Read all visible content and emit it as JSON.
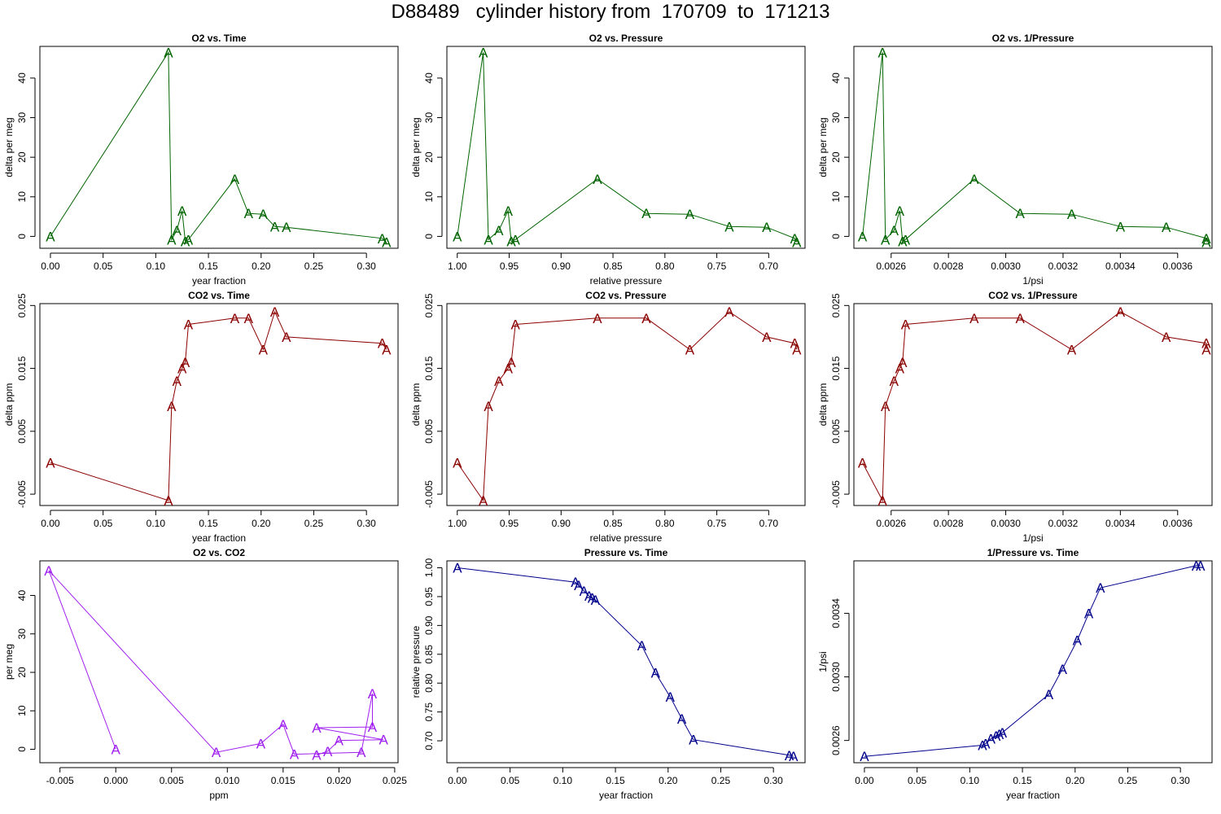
{
  "page": {
    "title": "D88489   cylinder history from  170709  to  171213"
  },
  "colors": {
    "o2": "#006400",
    "co2": "#8b0000",
    "o2co2": "#a020f0",
    "pressure": "#00008b"
  },
  "marker_glyph": "A",
  "chart_data": [
    {
      "type": "line",
      "title": "O2 vs. Time",
      "xlabel": "year fraction",
      "ylabel": "delta per meg",
      "xlim": [
        -0.01,
        0.33
      ],
      "ylim": [
        -3,
        48
      ],
      "xticks": [
        0,
        0.05,
        0.1,
        0.15,
        0.2,
        0.25,
        0.3
      ],
      "xtick_labels": [
        "0.00",
        "0.05",
        "0.10",
        "0.15",
        "0.20",
        "0.25",
        "0.30"
      ],
      "yticks": [
        0,
        10,
        20,
        30,
        40
      ],
      "ytick_labels": [
        "0",
        "10",
        "20",
        "30",
        "40"
      ],
      "color_key": "o2",
      "x": [
        0.0,
        0.112,
        0.115,
        0.12,
        0.125,
        0.128,
        0.131,
        0.175,
        0.188,
        0.202,
        0.213,
        0.224,
        0.315,
        0.319
      ],
      "y": [
        0.0,
        46.5,
        -0.8,
        1.5,
        6.5,
        -1.3,
        -0.8,
        14.5,
        5.8,
        5.6,
        2.5,
        2.3,
        -0.5,
        -1.5
      ]
    },
    {
      "type": "line",
      "title": "O2 vs. Pressure",
      "xlabel": "relative pressure",
      "ylabel": "delta per meg",
      "xlim": [
        1.01,
        0.665
      ],
      "ylim": [
        -3,
        48
      ],
      "xticks": [
        1.0,
        0.95,
        0.9,
        0.85,
        0.8,
        0.75,
        0.7
      ],
      "xtick_labels": [
        "1.00",
        "0.95",
        "0.90",
        "0.85",
        "0.80",
        "0.75",
        "0.70"
      ],
      "yticks": [
        0,
        10,
        20,
        30,
        40
      ],
      "ytick_labels": [
        "0",
        "10",
        "20",
        "30",
        "40"
      ],
      "color_key": "o2",
      "x": [
        1.0,
        0.975,
        0.97,
        0.96,
        0.951,
        0.948,
        0.944,
        0.865,
        0.818,
        0.776,
        0.738,
        0.702,
        0.675,
        0.673
      ],
      "y": [
        0.0,
        46.5,
        -0.8,
        1.5,
        6.5,
        -1.3,
        -0.8,
        14.5,
        5.8,
        5.6,
        2.5,
        2.3,
        -0.5,
        -1.5
      ]
    },
    {
      "type": "line",
      "title": "O2 vs. 1/Pressure",
      "xlabel": "1/psi",
      "ylabel": "delta per meg",
      "xlim": [
        0.00247,
        0.00372
      ],
      "ylim": [
        -3,
        48
      ],
      "xticks": [
        0.0026,
        0.0028,
        0.003,
        0.0032,
        0.0034,
        0.0036
      ],
      "xtick_labels": [
        "0.0026",
        "0.0028",
        "0.0030",
        "0.0032",
        "0.0034",
        "0.0036"
      ],
      "yticks": [
        0,
        10,
        20,
        30,
        40
      ],
      "ytick_labels": [
        "0",
        "10",
        "20",
        "30",
        "40"
      ],
      "color_key": "o2",
      "x": [
        0.0025,
        0.00257,
        0.00258,
        0.00261,
        0.00263,
        0.00264,
        0.00265,
        0.00289,
        0.00305,
        0.00323,
        0.0034,
        0.00356,
        0.0037,
        0.0037
      ],
      "y": [
        0.0,
        46.5,
        -0.8,
        1.5,
        6.5,
        -1.3,
        -0.8,
        14.5,
        5.8,
        5.6,
        2.5,
        2.3,
        -0.5,
        -1.5
      ]
    },
    {
      "type": "line",
      "title": "CO2 vs. Time",
      "xlabel": "year fraction",
      "ylabel": "delta ppm",
      "xlim": [
        -0.01,
        0.33
      ],
      "ylim": [
        -0.0068,
        0.0253
      ],
      "xticks": [
        0,
        0.05,
        0.1,
        0.15,
        0.2,
        0.25,
        0.3
      ],
      "xtick_labels": [
        "0.00",
        "0.05",
        "0.10",
        "0.15",
        "0.20",
        "0.25",
        "0.30"
      ],
      "yticks": [
        -0.005,
        0.005,
        0.015,
        0.025
      ],
      "ytick_labels": [
        "-0.005",
        "0.005",
        "0.015",
        "0.025"
      ],
      "color_key": "co2",
      "x": [
        0.0,
        0.112,
        0.115,
        0.12,
        0.125,
        0.128,
        0.131,
        0.175,
        0.188,
        0.202,
        0.213,
        0.224,
        0.315,
        0.319
      ],
      "y": [
        0.0,
        -0.006,
        0.009,
        0.013,
        0.015,
        0.016,
        0.022,
        0.023,
        0.023,
        0.018,
        0.024,
        0.02,
        0.019,
        0.018
      ]
    },
    {
      "type": "line",
      "title": "CO2 vs. Pressure",
      "xlabel": "relative pressure",
      "ylabel": "delta ppm",
      "xlim": [
        1.01,
        0.665
      ],
      "ylim": [
        -0.0068,
        0.0253
      ],
      "xticks": [
        1.0,
        0.95,
        0.9,
        0.85,
        0.8,
        0.75,
        0.7
      ],
      "xtick_labels": [
        "1.00",
        "0.95",
        "0.90",
        "0.85",
        "0.80",
        "0.75",
        "0.70"
      ],
      "yticks": [
        -0.005,
        0.005,
        0.015,
        0.025
      ],
      "ytick_labels": [
        "-0.005",
        "0.005",
        "0.015",
        "0.025"
      ],
      "color_key": "co2",
      "x": [
        1.0,
        0.975,
        0.97,
        0.96,
        0.951,
        0.948,
        0.944,
        0.865,
        0.818,
        0.776,
        0.738,
        0.702,
        0.675,
        0.673
      ],
      "y": [
        0.0,
        -0.006,
        0.009,
        0.013,
        0.015,
        0.016,
        0.022,
        0.023,
        0.023,
        0.018,
        0.024,
        0.02,
        0.019,
        0.018
      ]
    },
    {
      "type": "line",
      "title": "CO2 vs. 1/Pressure",
      "xlabel": "1/psi",
      "ylabel": "delta ppm",
      "xlim": [
        0.00247,
        0.00372
      ],
      "ylim": [
        -0.0068,
        0.0253
      ],
      "xticks": [
        0.0026,
        0.0028,
        0.003,
        0.0032,
        0.0034,
        0.0036
      ],
      "xtick_labels": [
        "0.0026",
        "0.0028",
        "0.0030",
        "0.0032",
        "0.0034",
        "0.0036"
      ],
      "yticks": [
        -0.005,
        0.005,
        0.015,
        0.025
      ],
      "ytick_labels": [
        "-0.005",
        "0.005",
        "0.015",
        "0.025"
      ],
      "color_key": "co2",
      "x": [
        0.0025,
        0.00257,
        0.00258,
        0.00261,
        0.00263,
        0.00264,
        0.00265,
        0.00289,
        0.00305,
        0.00323,
        0.0034,
        0.00356,
        0.0037,
        0.0037
      ],
      "y": [
        0.0,
        -0.006,
        0.009,
        0.013,
        0.015,
        0.016,
        0.022,
        0.023,
        0.023,
        0.018,
        0.024,
        0.02,
        0.019,
        0.018
      ]
    },
    {
      "type": "line",
      "title": "O2 vs. CO2",
      "xlabel": "ppm",
      "ylabel": "per meg",
      "xlim": [
        -0.0068,
        0.0253
      ],
      "ylim": [
        -3.5,
        49
      ],
      "xticks": [
        -0.005,
        0.0,
        0.005,
        0.01,
        0.015,
        0.02,
        0.025
      ],
      "xtick_labels": [
        "-0.005",
        "0.000",
        "0.005",
        "0.010",
        "0.015",
        "0.020",
        "0.025"
      ],
      "yticks": [
        0,
        10,
        20,
        30,
        40
      ],
      "ytick_labels": [
        "0",
        "10",
        "20",
        "30",
        "40"
      ],
      "color_key": "o2co2",
      "x": [
        0.0,
        -0.006,
        0.009,
        0.013,
        0.015,
        0.016,
        0.022,
        0.023,
        0.023,
        0.018,
        0.024,
        0.02,
        0.019,
        0.018
      ],
      "y": [
        0.0,
        46.5,
        -0.8,
        1.5,
        6.5,
        -1.3,
        -0.8,
        14.5,
        5.8,
        5.6,
        2.5,
        2.3,
        -0.5,
        -1.5
      ]
    },
    {
      "type": "line",
      "title": "Pressure vs. Time",
      "xlabel": "year fraction",
      "ylabel": "relative pressure",
      "xlim": [
        -0.01,
        0.33
      ],
      "ylim": [
        0.662,
        1.012
      ],
      "xticks": [
        0,
        0.05,
        0.1,
        0.15,
        0.2,
        0.25,
        0.3
      ],
      "xtick_labels": [
        "0.00",
        "0.05",
        "0.10",
        "0.15",
        "0.20",
        "0.25",
        "0.30"
      ],
      "yticks": [
        0.7,
        0.75,
        0.8,
        0.85,
        0.9,
        0.95,
        1.0
      ],
      "ytick_labels": [
        "0.70",
        "0.75",
        "0.80",
        "0.85",
        "0.90",
        "0.95",
        "1.00"
      ],
      "color_key": "pressure",
      "x": [
        0.0,
        0.112,
        0.115,
        0.12,
        0.125,
        0.128,
        0.131,
        0.175,
        0.188,
        0.202,
        0.213,
        0.224,
        0.315,
        0.319
      ],
      "y": [
        1.0,
        0.975,
        0.97,
        0.96,
        0.951,
        0.948,
        0.944,
        0.865,
        0.818,
        0.776,
        0.738,
        0.702,
        0.675,
        0.673
      ]
    },
    {
      "type": "line",
      "title": "1/Pressure vs. Time",
      "xlabel": "year fraction",
      "ylabel": "1/psi",
      "xlim": [
        -0.01,
        0.33
      ],
      "ylim": [
        0.00246,
        0.00373
      ],
      "xticks": [
        0,
        0.05,
        0.1,
        0.15,
        0.2,
        0.25,
        0.3
      ],
      "xtick_labels": [
        "0.00",
        "0.05",
        "0.10",
        "0.15",
        "0.20",
        "0.25",
        "0.30"
      ],
      "yticks": [
        0.0026,
        0.003,
        0.0034
      ],
      "ytick_labels": [
        "0.0026",
        "0.0030",
        "0.0034"
      ],
      "color_key": "pressure",
      "x": [
        0.0,
        0.112,
        0.115,
        0.12,
        0.125,
        0.128,
        0.131,
        0.175,
        0.188,
        0.202,
        0.213,
        0.224,
        0.315,
        0.319
      ],
      "y": [
        0.0025,
        0.00257,
        0.00258,
        0.00261,
        0.00263,
        0.00264,
        0.00265,
        0.00289,
        0.00305,
        0.00323,
        0.0034,
        0.00356,
        0.0037,
        0.0037
      ]
    }
  ]
}
